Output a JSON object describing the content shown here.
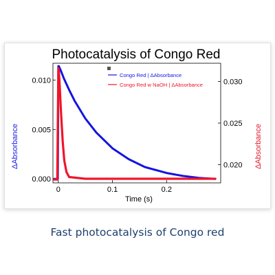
{
  "caption": "Fast photocatalysis of Congo red",
  "colors": {
    "series_blue": "#1414e0",
    "series_red": "#f0142a",
    "caption": "#1d3f6e",
    "left_axis_label": "#1a1ae6",
    "right_axis_label": "#e21a2a"
  },
  "chart_data": {
    "type": "line",
    "title": "Photocatalysis of Congo Red",
    "xlabel": "Time (s)",
    "ylabel_left": "ΔAbsorbance",
    "ylabel_right": "ΔAbsorbance",
    "xlim": [
      -0.01,
      0.3
    ],
    "ylim_left": [
      -0.0004,
      0.0117
    ],
    "ylim_right": [
      0.0178,
      0.0322
    ],
    "x_ticks": [
      0,
      0.1,
      0.2
    ],
    "x_tick_labels": [
      "0",
      "0.1",
      "0.2"
    ],
    "y_left_ticks": [
      0,
      0.005,
      0.01
    ],
    "y_left_tick_labels": [
      "0.000",
      "0.005",
      "0.010"
    ],
    "y_right_ticks": [
      0.02,
      0.025,
      0.03
    ],
    "y_right_tick_labels": [
      "0.020",
      "0.025",
      "0.030"
    ],
    "legend_position": "top-right",
    "grid": false,
    "series": [
      {
        "name": "Congo Red | ΔAbsorbance",
        "axis": "left",
        "x": [
          -0.008,
          -0.001,
          0.0,
          0.001,
          0.005,
          0.01,
          0.02,
          0.03,
          0.05,
          0.07,
          0.1,
          0.13,
          0.16,
          0.2,
          0.23,
          0.26,
          0.29
        ],
        "y": [
          0.0,
          0.0,
          0.0114,
          0.0114,
          0.0109,
          0.0102,
          0.009,
          0.0079,
          0.0061,
          0.0047,
          0.0031,
          0.002,
          0.0012,
          0.0006,
          0.0003,
          0.0001,
          0.0
        ]
      },
      {
        "name": "Congo Red w NaOH | ΔAbsorbance",
        "axis": "right",
        "x": [
          -0.008,
          -0.002,
          0.0,
          0.001,
          0.003,
          0.005,
          0.008,
          0.011,
          0.015,
          0.02,
          0.05,
          0.1,
          0.15,
          0.2,
          0.25,
          0.29
        ],
        "y": [
          0.0182,
          0.0182,
          0.0316,
          0.0312,
          0.0289,
          0.0262,
          0.0228,
          0.0205,
          0.0191,
          0.0185,
          0.0183,
          0.0183,
          0.0183,
          0.0183,
          0.0183,
          0.0183
        ]
      }
    ]
  }
}
